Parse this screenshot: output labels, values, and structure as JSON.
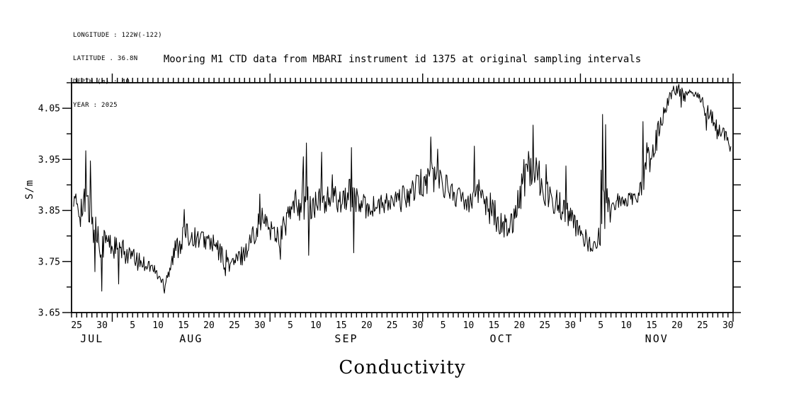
{
  "header": {
    "longitude_line": "LONGITUDE : 122W(-122)",
    "latitude_line": "LATITUDE . 36.8N",
    "depth_line": "DEPTH (m) : 40",
    "year_line": "YEAR : 2025"
  },
  "chart_data": {
    "type": "line",
    "title": "Mooring M1 CTD data from MBARI instrument id 1375 at original sampling intervals",
    "xlabel": "Conductivity",
    "ylabel": "S/m",
    "line_color": "#000000",
    "background": "#ffffff",
    "grid": false,
    "legend": "none",
    "ylim": [
      3.65,
      4.1
    ],
    "y_major_ticks": [
      3.65,
      3.75,
      3.85,
      3.95,
      4.05
    ],
    "y_minor_step": 0.05,
    "x_domain": {
      "start_date": "2025-07-24",
      "end_date": "2025-12-01",
      "days": 130
    },
    "month_tick_days": [
      8,
      39,
      69,
      100,
      130
    ],
    "months": [
      {
        "label": "JUL",
        "start": 0,
        "end": 8
      },
      {
        "label": "AUG",
        "start": 8,
        "end": 39
      },
      {
        "label": "SEP",
        "start": 39,
        "end": 69
      },
      {
        "label": "OCT",
        "start": 69,
        "end": 100
      },
      {
        "label": "NOV",
        "start": 100,
        "end": 130
      }
    ],
    "day_labels": [
      [
        1,
        "25"
      ],
      [
        6,
        "30"
      ],
      [
        12,
        "5"
      ],
      [
        17,
        "10"
      ],
      [
        22,
        "15"
      ],
      [
        27,
        "20"
      ],
      [
        32,
        "25"
      ],
      [
        37,
        "30"
      ],
      [
        43,
        "5"
      ],
      [
        48,
        "10"
      ],
      [
        53,
        "15"
      ],
      [
        58,
        "20"
      ],
      [
        63,
        "25"
      ],
      [
        68,
        "30"
      ],
      [
        73,
        "5"
      ],
      [
        78,
        "10"
      ],
      [
        83,
        "15"
      ],
      [
        88,
        "20"
      ],
      [
        93,
        "25"
      ],
      [
        98,
        "30"
      ],
      [
        104,
        "5"
      ],
      [
        109,
        "10"
      ],
      [
        114,
        "15"
      ],
      [
        119,
        "20"
      ],
      [
        124,
        "25"
      ],
      [
        129,
        "30"
      ]
    ],
    "sample_step_days": 0.15,
    "series": {
      "name": "Conductivity (S/m)",
      "trend_points": [
        [
          0.4,
          3.865,
          0.02
        ],
        [
          1.2,
          3.86,
          0.03
        ],
        [
          2.2,
          3.85,
          0.045
        ],
        [
          3.2,
          3.855,
          0.05
        ],
        [
          4.2,
          3.825,
          0.05
        ],
        [
          5.2,
          3.8,
          0.04
        ],
        [
          6.2,
          3.79,
          0.035
        ],
        [
          7.0,
          3.79,
          0.025
        ],
        [
          8.0,
          3.78,
          0.028
        ],
        [
          9.0,
          3.775,
          0.025
        ],
        [
          11,
          3.765,
          0.022
        ],
        [
          13,
          3.75,
          0.018
        ],
        [
          15,
          3.745,
          0.015
        ],
        [
          16.5,
          3.73,
          0.015
        ],
        [
          18,
          3.708,
          0.015
        ],
        [
          19,
          3.73,
          0.02
        ],
        [
          20.5,
          3.775,
          0.025
        ],
        [
          22,
          3.8,
          0.028
        ],
        [
          23.5,
          3.8,
          0.02
        ],
        [
          25,
          3.795,
          0.02
        ],
        [
          27,
          3.79,
          0.02
        ],
        [
          28.5,
          3.775,
          0.022
        ],
        [
          30,
          3.755,
          0.022
        ],
        [
          31.5,
          3.745,
          0.02
        ],
        [
          33,
          3.757,
          0.02
        ],
        [
          34.5,
          3.775,
          0.022
        ],
        [
          36,
          3.81,
          0.025
        ],
        [
          37.2,
          3.835,
          0.025
        ],
        [
          38.2,
          3.825,
          0.02
        ],
        [
          39.5,
          3.81,
          0.025
        ],
        [
          41,
          3.8,
          0.028
        ],
        [
          42.5,
          3.835,
          0.028
        ],
        [
          44,
          3.862,
          0.03
        ],
        [
          45.5,
          3.87,
          0.045
        ],
        [
          47,
          3.85,
          0.04
        ],
        [
          48.5,
          3.865,
          0.028
        ],
        [
          50,
          3.87,
          0.028
        ],
        [
          51.5,
          3.872,
          0.028
        ],
        [
          53,
          3.875,
          0.03
        ],
        [
          54.8,
          3.88,
          0.035
        ],
        [
          56.5,
          3.862,
          0.025
        ],
        [
          58,
          3.856,
          0.022
        ],
        [
          60,
          3.858,
          0.022
        ],
        [
          62,
          3.862,
          0.022
        ],
        [
          64,
          3.868,
          0.024
        ],
        [
          66,
          3.878,
          0.026
        ],
        [
          68,
          3.895,
          0.03
        ],
        [
          69.5,
          3.91,
          0.035
        ],
        [
          71,
          3.92,
          0.04
        ],
        [
          72,
          3.915,
          0.035
        ],
        [
          73,
          3.905,
          0.028
        ],
        [
          74.5,
          3.89,
          0.025
        ],
        [
          76,
          3.875,
          0.025
        ],
        [
          77.5,
          3.87,
          0.027
        ],
        [
          79,
          3.885,
          0.035
        ],
        [
          80,
          3.885,
          0.03
        ],
        [
          81,
          3.88,
          0.03
        ],
        [
          82.5,
          3.85,
          0.035
        ],
        [
          84,
          3.83,
          0.03
        ],
        [
          85.5,
          3.815,
          0.025
        ],
        [
          87,
          3.84,
          0.03
        ],
        [
          89,
          3.92,
          0.045
        ],
        [
          90.5,
          3.95,
          0.05
        ],
        [
          91.5,
          3.93,
          0.04
        ],
        [
          93,
          3.885,
          0.03
        ],
        [
          95,
          3.87,
          0.028
        ],
        [
          97,
          3.85,
          0.028
        ],
        [
          99,
          3.82,
          0.022
        ],
        [
          101,
          3.795,
          0.02
        ],
        [
          102.5,
          3.775,
          0.015
        ],
        [
          103.5,
          3.785,
          0.02
        ],
        [
          104.2,
          3.88,
          0.09
        ],
        [
          105.0,
          3.9,
          0.08
        ],
        [
          105.5,
          3.87,
          0.04
        ],
        [
          106,
          3.87,
          0.022
        ],
        [
          108,
          3.868,
          0.013
        ],
        [
          110,
          3.873,
          0.013
        ],
        [
          111.5,
          3.878,
          0.015
        ],
        [
          112.5,
          3.93,
          0.04
        ],
        [
          113,
          3.95,
          0.035
        ],
        [
          114,
          3.955,
          0.03
        ],
        [
          115,
          3.99,
          0.03
        ],
        [
          116,
          4.03,
          0.025
        ],
        [
          117,
          4.06,
          0.02
        ],
        [
          117.5,
          4.075,
          0.015
        ],
        [
          118.5,
          4.085,
          0.012
        ],
        [
          119,
          4.088,
          0.01
        ],
        [
          120,
          4.078,
          0.012
        ],
        [
          121,
          4.072,
          0.012
        ],
        [
          122,
          4.077,
          0.012
        ],
        [
          122.7,
          4.083,
          0.01
        ],
        [
          123.5,
          4.065,
          0.015
        ],
        [
          124.5,
          4.05,
          0.018
        ],
        [
          125.5,
          4.035,
          0.02
        ],
        [
          126.5,
          4.02,
          0.02
        ],
        [
          127.5,
          4.005,
          0.018
        ],
        [
          128.5,
          3.99,
          0.018
        ],
        [
          129.2,
          3.98,
          0.015
        ],
        [
          129.6,
          3.975,
          0.012
        ]
      ],
      "spikes": [
        [
          2.8,
          3.967
        ],
        [
          3.7,
          3.947
        ],
        [
          4.6,
          3.73
        ],
        [
          6.0,
          3.692
        ],
        [
          9.3,
          3.706
        ],
        [
          18.2,
          3.688
        ],
        [
          22.1,
          3.852
        ],
        [
          30.3,
          3.722
        ],
        [
          37.0,
          3.882
        ],
        [
          41.0,
          3.754
        ],
        [
          45.5,
          3.955
        ],
        [
          46.2,
          3.982
        ],
        [
          46.6,
          3.762
        ],
        [
          49.1,
          3.964
        ],
        [
          51.3,
          3.92
        ],
        [
          55.0,
          3.973
        ],
        [
          55.5,
          3.767
        ],
        [
          70.6,
          3.994
        ],
        [
          71.9,
          3.97
        ],
        [
          79.2,
          3.976
        ],
        [
          90.7,
          4.017
        ],
        [
          93.3,
          3.94
        ],
        [
          97.2,
          3.937
        ],
        [
          104.3,
          4.038
        ],
        [
          104.9,
          4.018
        ],
        [
          105.8,
          3.827
        ],
        [
          112.3,
          4.024
        ],
        [
          119.3,
          4.097
        ],
        [
          119.8,
          4.052
        ],
        [
          124.8,
          4.007
        ],
        [
          126.8,
          3.99
        ]
      ]
    }
  }
}
